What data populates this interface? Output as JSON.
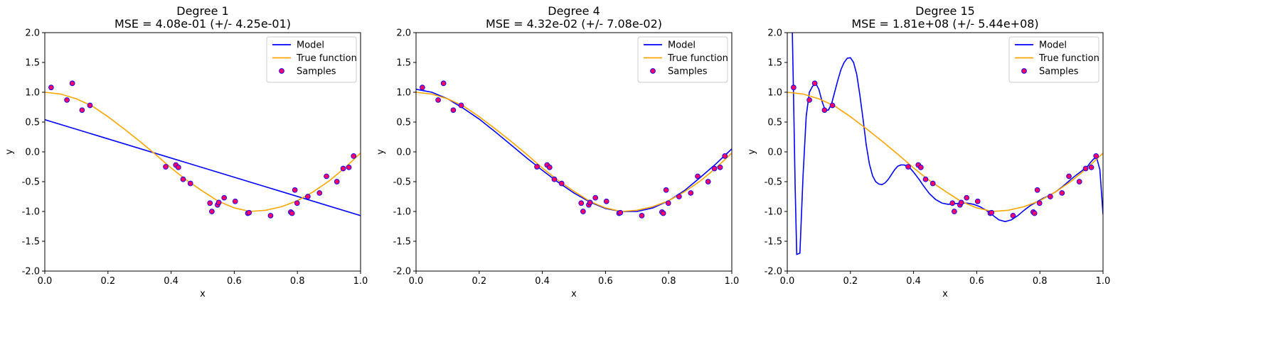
{
  "chart_data": [
    {
      "type": "line",
      "title": "Degree 1",
      "subtitle": "MSE = 4.08e-01 (+/- 4.25e-01)",
      "xlabel": "x",
      "ylabel": "y",
      "xlim": [
        0,
        1
      ],
      "ylim": [
        -2,
        2
      ],
      "xticks": [
        "0.0",
        "0.2",
        "0.4",
        "0.6",
        "0.8",
        "1.0"
      ],
      "yticks": [
        "-2.0",
        "-1.5",
        "-1.0",
        "-0.5",
        "0.0",
        "0.5",
        "1.0",
        "1.5",
        "2.0"
      ],
      "legend": {
        "placement": "top-right",
        "entries": [
          "Model",
          "True function",
          "Samples"
        ]
      },
      "series": [
        {
          "name": "Model",
          "color": "#0000ff",
          "kind": "line",
          "x": [
            0.0,
            1.0
          ],
          "y": [
            0.54,
            -1.07
          ]
        },
        {
          "name": "True function",
          "color": "#ffa500",
          "kind": "line",
          "x": [
            0.0,
            0.05,
            0.1,
            0.15,
            0.2,
            0.25,
            0.3,
            0.35,
            0.4,
            0.45,
            0.5,
            0.55,
            0.6,
            0.65,
            0.7,
            0.75,
            0.8,
            0.85,
            0.9,
            0.95,
            1.0
          ],
          "y": [
            1.0,
            0.97,
            0.89,
            0.77,
            0.59,
            0.39,
            0.18,
            -0.04,
            -0.27,
            -0.48,
            -0.66,
            -0.83,
            -0.94,
            -1.0,
            -0.98,
            -0.92,
            -0.82,
            -0.67,
            -0.49,
            -0.27,
            -0.02
          ]
        },
        {
          "name": "Samples",
          "color": "#0000ff",
          "fill": "#ff0066",
          "kind": "scatter",
          "x": [
            0.02,
            0.07,
            0.087,
            0.118,
            0.143,
            0.383,
            0.415,
            0.423,
            0.438,
            0.461,
            0.523,
            0.529,
            0.547,
            0.551,
            0.568,
            0.603,
            0.643,
            0.647,
            0.715,
            0.779,
            0.783,
            0.792,
            0.799,
            0.833,
            0.87,
            0.892,
            0.925,
            0.945,
            0.963,
            0.978
          ],
          "y": [
            1.08,
            0.87,
            1.15,
            0.7,
            0.78,
            -0.25,
            -0.22,
            -0.26,
            -0.46,
            -0.53,
            -0.86,
            -1.0,
            -0.89,
            -0.85,
            -0.77,
            -0.83,
            -1.03,
            -1.02,
            -1.07,
            -1.01,
            -1.03,
            -0.64,
            -0.86,
            -0.75,
            -0.69,
            -0.41,
            -0.5,
            -0.28,
            -0.26,
            -0.07
          ]
        }
      ]
    },
    {
      "type": "line",
      "title": "Degree 4",
      "subtitle": "MSE = 4.32e-02 (+/- 7.08e-02)",
      "xlabel": "x",
      "ylabel": "y",
      "xlim": [
        0,
        1
      ],
      "ylim": [
        -2,
        2
      ],
      "xticks": [
        "0.0",
        "0.2",
        "0.4",
        "0.6",
        "0.8",
        "1.0"
      ],
      "yticks": [
        "-2.0",
        "-1.5",
        "-1.0",
        "-0.5",
        "0.0",
        "0.5",
        "1.0",
        "1.5",
        "2.0"
      ],
      "legend": {
        "placement": "top-right",
        "entries": [
          "Model",
          "True function",
          "Samples"
        ]
      },
      "series": [
        {
          "name": "Model",
          "color": "#0000ff",
          "kind": "line",
          "x": [
            0.0,
            0.05,
            0.1,
            0.15,
            0.2,
            0.25,
            0.3,
            0.35,
            0.4,
            0.45,
            0.5,
            0.55,
            0.6,
            0.65,
            0.7,
            0.75,
            0.8,
            0.85,
            0.9,
            0.95,
            1.0
          ],
          "y": [
            1.05,
            1.0,
            0.89,
            0.73,
            0.55,
            0.34,
            0.12,
            -0.1,
            -0.31,
            -0.51,
            -0.69,
            -0.84,
            -0.95,
            -1.0,
            -1.0,
            -0.94,
            -0.82,
            -0.65,
            -0.43,
            -0.2,
            0.05
          ]
        },
        {
          "name": "True function",
          "color": "#ffa500",
          "kind": "line",
          "x": [
            0.0,
            0.05,
            0.1,
            0.15,
            0.2,
            0.25,
            0.3,
            0.35,
            0.4,
            0.45,
            0.5,
            0.55,
            0.6,
            0.65,
            0.7,
            0.75,
            0.8,
            0.85,
            0.9,
            0.95,
            1.0
          ],
          "y": [
            1.0,
            0.97,
            0.89,
            0.77,
            0.59,
            0.39,
            0.18,
            -0.04,
            -0.27,
            -0.48,
            -0.66,
            -0.83,
            -0.94,
            -1.0,
            -0.98,
            -0.92,
            -0.82,
            -0.67,
            -0.49,
            -0.27,
            -0.02
          ]
        },
        {
          "name": "Samples",
          "color": "#0000ff",
          "fill": "#ff0066",
          "kind": "scatter",
          "x": [
            0.02,
            0.07,
            0.087,
            0.118,
            0.143,
            0.383,
            0.415,
            0.423,
            0.438,
            0.461,
            0.523,
            0.529,
            0.547,
            0.551,
            0.568,
            0.603,
            0.643,
            0.647,
            0.715,
            0.779,
            0.783,
            0.792,
            0.799,
            0.833,
            0.87,
            0.892,
            0.925,
            0.945,
            0.963,
            0.978
          ],
          "y": [
            1.08,
            0.87,
            1.15,
            0.7,
            0.78,
            -0.25,
            -0.22,
            -0.26,
            -0.46,
            -0.53,
            -0.86,
            -1.0,
            -0.89,
            -0.85,
            -0.77,
            -0.83,
            -1.03,
            -1.02,
            -1.07,
            -1.01,
            -1.03,
            -0.64,
            -0.86,
            -0.75,
            -0.69,
            -0.41,
            -0.5,
            -0.28,
            -0.26,
            -0.07
          ]
        }
      ]
    },
    {
      "type": "line",
      "title": "Degree 15",
      "subtitle": "MSE = 1.81e+08 (+/- 5.44e+08)",
      "xlabel": "x",
      "ylabel": "y",
      "xlim": [
        0,
        1
      ],
      "ylim": [
        -2,
        2
      ],
      "xticks": [
        "0.0",
        "0.2",
        "0.4",
        "0.6",
        "0.8",
        "1.0"
      ],
      "yticks": [
        "-2.0",
        "-1.5",
        "-1.0",
        "-0.5",
        "0.0",
        "0.5",
        "1.0",
        "1.5",
        "2.0"
      ],
      "legend": {
        "placement": "top-right",
        "entries": [
          "Model",
          "True function",
          "Samples"
        ]
      },
      "series": [
        {
          "name": "Model",
          "color": "#0000ff",
          "kind": "line",
          "x": [
            0.015,
            0.02,
            0.025,
            0.03,
            0.04,
            0.05,
            0.06,
            0.07,
            0.08,
            0.09,
            0.1,
            0.11,
            0.12,
            0.13,
            0.14,
            0.15,
            0.16,
            0.17,
            0.18,
            0.19,
            0.2,
            0.21,
            0.22,
            0.23,
            0.24,
            0.25,
            0.26,
            0.27,
            0.28,
            0.29,
            0.3,
            0.31,
            0.32,
            0.33,
            0.34,
            0.35,
            0.36,
            0.37,
            0.38,
            0.39,
            0.4,
            0.41,
            0.42,
            0.43,
            0.44,
            0.45,
            0.47,
            0.49,
            0.51,
            0.53,
            0.55,
            0.57,
            0.59,
            0.61,
            0.63,
            0.65,
            0.67,
            0.69,
            0.71,
            0.73,
            0.75,
            0.77,
            0.79,
            0.81,
            0.83,
            0.85,
            0.87,
            0.89,
            0.91,
            0.93,
            0.95,
            0.96,
            0.97,
            0.98,
            0.99,
            1.0
          ],
          "y": [
            2.3,
            0.9,
            -0.6,
            -1.72,
            -1.7,
            -0.4,
            0.6,
            1.0,
            1.1,
            1.15,
            1.05,
            0.85,
            0.7,
            0.7,
            0.8,
            1.0,
            1.2,
            1.38,
            1.5,
            1.57,
            1.58,
            1.5,
            1.3,
            0.95,
            0.55,
            0.12,
            -0.2,
            -0.4,
            -0.5,
            -0.54,
            -0.55,
            -0.52,
            -0.46,
            -0.38,
            -0.3,
            -0.24,
            -0.22,
            -0.22,
            -0.24,
            -0.28,
            -0.34,
            -0.41,
            -0.48,
            -0.56,
            -0.63,
            -0.7,
            -0.8,
            -0.86,
            -0.88,
            -0.87,
            -0.86,
            -0.86,
            -0.88,
            -0.92,
            -0.98,
            -1.06,
            -1.14,
            -1.17,
            -1.14,
            -1.07,
            -0.98,
            -0.9,
            -0.84,
            -0.78,
            -0.73,
            -0.67,
            -0.59,
            -0.5,
            -0.41,
            -0.33,
            -0.25,
            -0.18,
            -0.12,
            -0.1,
            -0.3,
            -1.05
          ]
        },
        {
          "name": "True function",
          "color": "#ffa500",
          "kind": "line",
          "x": [
            0.0,
            0.05,
            0.1,
            0.15,
            0.2,
            0.25,
            0.3,
            0.35,
            0.4,
            0.45,
            0.5,
            0.55,
            0.6,
            0.65,
            0.7,
            0.75,
            0.8,
            0.85,
            0.9,
            0.95,
            1.0
          ],
          "y": [
            1.0,
            0.97,
            0.89,
            0.77,
            0.59,
            0.39,
            0.18,
            -0.04,
            -0.27,
            -0.48,
            -0.66,
            -0.83,
            -0.94,
            -1.0,
            -0.98,
            -0.92,
            -0.82,
            -0.67,
            -0.49,
            -0.27,
            -0.02
          ]
        },
        {
          "name": "Samples",
          "color": "#0000ff",
          "fill": "#ff0066",
          "kind": "scatter",
          "x": [
            0.02,
            0.07,
            0.087,
            0.118,
            0.143,
            0.383,
            0.415,
            0.423,
            0.438,
            0.461,
            0.523,
            0.529,
            0.547,
            0.551,
            0.568,
            0.603,
            0.643,
            0.647,
            0.715,
            0.779,
            0.783,
            0.792,
            0.799,
            0.833,
            0.87,
            0.892,
            0.925,
            0.945,
            0.963,
            0.978
          ],
          "y": [
            1.08,
            0.87,
            1.15,
            0.7,
            0.78,
            -0.25,
            -0.22,
            -0.26,
            -0.46,
            -0.53,
            -0.86,
            -1.0,
            -0.89,
            -0.85,
            -0.77,
            -0.83,
            -1.03,
            -1.02,
            -1.07,
            -1.01,
            -1.03,
            -0.64,
            -0.86,
            -0.75,
            -0.69,
            -0.41,
            -0.5,
            -0.28,
            -0.26,
            -0.07
          ]
        }
      ]
    }
  ]
}
